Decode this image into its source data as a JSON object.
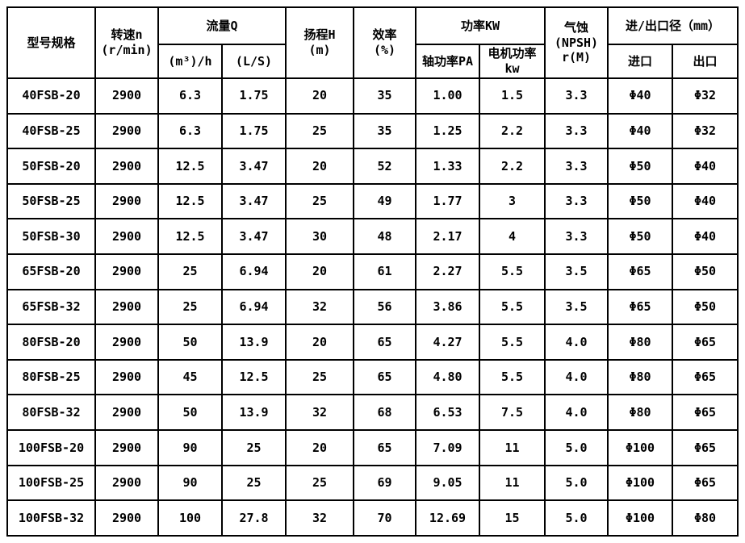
{
  "table": {
    "title_semantic": "FSB pump model specification table",
    "colors": {
      "border": "#000000",
      "background": "#ffffff",
      "text": "#000000"
    },
    "headers": {
      "model": "型号规格",
      "speed": "转速n\n(r/min)",
      "flow_group": "流量Q",
      "flow_m3h": "(m³)/h",
      "flow_ls": "(L/S)",
      "head": "扬程H\n(m)",
      "efficiency": "效率\n(%)",
      "power_group": "功率KW",
      "power_shaft": "轴功率PA",
      "power_motor": "电机功率\nkw",
      "npsh": "气蚀\n(NPSH)\nr(M)",
      "ports_group": "进/出口径（mm）",
      "inlet": "进口",
      "outlet": "出口"
    },
    "rows": [
      [
        "40FSB-20",
        "2900",
        "6.3",
        "1.75",
        "20",
        "35",
        "1.00",
        "1.5",
        "3.3",
        "Φ40",
        "Φ32"
      ],
      [
        "40FSB-25",
        "2900",
        "6.3",
        "1.75",
        "25",
        "35",
        "1.25",
        "2.2",
        "3.3",
        "Φ40",
        "Φ32"
      ],
      [
        "50FSB-20",
        "2900",
        "12.5",
        "3.47",
        "20",
        "52",
        "1.33",
        "2.2",
        "3.3",
        "Φ50",
        "Φ40"
      ],
      [
        "50FSB-25",
        "2900",
        "12.5",
        "3.47",
        "25",
        "49",
        "1.77",
        "3",
        "3.3",
        "Φ50",
        "Φ40"
      ],
      [
        "50FSB-30",
        "2900",
        "12.5",
        "3.47",
        "30",
        "48",
        "2.17",
        "4",
        "3.3",
        "Φ50",
        "Φ40"
      ],
      [
        "65FSB-20",
        "2900",
        "25",
        "6.94",
        "20",
        "61",
        "2.27",
        "5.5",
        "3.5",
        "Φ65",
        "Φ50"
      ],
      [
        "65FSB-32",
        "2900",
        "25",
        "6.94",
        "32",
        "56",
        "3.86",
        "5.5",
        "3.5",
        "Φ65",
        "Φ50"
      ],
      [
        "80FSB-20",
        "2900",
        "50",
        "13.9",
        "20",
        "65",
        "4.27",
        "5.5",
        "4.0",
        "Φ80",
        "Φ65"
      ],
      [
        "80FSB-25",
        "2900",
        "45",
        "12.5",
        "25",
        "65",
        "4.80",
        "5.5",
        "4.0",
        "Φ80",
        "Φ65"
      ],
      [
        "80FSB-32",
        "2900",
        "50",
        "13.9",
        "32",
        "68",
        "6.53",
        "7.5",
        "4.0",
        "Φ80",
        "Φ65"
      ],
      [
        "100FSB-20",
        "2900",
        "90",
        "25",
        "20",
        "65",
        "7.09",
        "11",
        "5.0",
        "Φ100",
        "Φ65"
      ],
      [
        "100FSB-25",
        "2900",
        "90",
        "25",
        "25",
        "69",
        "9.05",
        "11",
        "5.0",
        "Φ100",
        "Φ65"
      ],
      [
        "100FSB-32",
        "2900",
        "100",
        "27.8",
        "32",
        "70",
        "12.69",
        "15",
        "5.0",
        "Φ100",
        "Φ80"
      ]
    ]
  },
  "chart_data": {
    "type": "table",
    "columns": [
      "型号规格",
      "转速n (r/min)",
      "流量Q (m³)/h",
      "流量Q (L/S)",
      "扬程H (m)",
      "效率 (%)",
      "轴功率PA",
      "电机功率kw",
      "气蚀(NPSH) r(M)",
      "进口",
      "出口"
    ],
    "rows": [
      [
        "40FSB-20",
        "2900",
        "6.3",
        "1.75",
        "20",
        "35",
        "1.00",
        "1.5",
        "3.3",
        "Φ40",
        "Φ32"
      ],
      [
        "40FSB-25",
        "2900",
        "6.3",
        "1.75",
        "25",
        "35",
        "1.25",
        "2.2",
        "3.3",
        "Φ40",
        "Φ32"
      ],
      [
        "50FSB-20",
        "2900",
        "12.5",
        "3.47",
        "20",
        "52",
        "1.33",
        "2.2",
        "3.3",
        "Φ50",
        "Φ40"
      ],
      [
        "50FSB-25",
        "2900",
        "12.5",
        "3.47",
        "25",
        "49",
        "1.77",
        "3",
        "3.3",
        "Φ50",
        "Φ40"
      ],
      [
        "50FSB-30",
        "2900",
        "12.5",
        "3.47",
        "30",
        "48",
        "2.17",
        "4",
        "3.3",
        "Φ50",
        "Φ40"
      ],
      [
        "65FSB-20",
        "2900",
        "25",
        "6.94",
        "20",
        "61",
        "2.27",
        "5.5",
        "3.5",
        "Φ65",
        "Φ50"
      ],
      [
        "65FSB-32",
        "2900",
        "25",
        "6.94",
        "32",
        "56",
        "3.86",
        "5.5",
        "3.5",
        "Φ65",
        "Φ50"
      ],
      [
        "80FSB-20",
        "2900",
        "50",
        "13.9",
        "20",
        "65",
        "4.27",
        "5.5",
        "4.0",
        "Φ80",
        "Φ65"
      ],
      [
        "80FSB-25",
        "2900",
        "45",
        "12.5",
        "25",
        "65",
        "4.80",
        "5.5",
        "4.0",
        "Φ80",
        "Φ65"
      ],
      [
        "80FSB-32",
        "2900",
        "50",
        "13.9",
        "32",
        "68",
        "6.53",
        "7.5",
        "4.0",
        "Φ80",
        "Φ65"
      ],
      [
        "100FSB-20",
        "2900",
        "90",
        "25",
        "20",
        "65",
        "7.09",
        "11",
        "5.0",
        "Φ100",
        "Φ65"
      ],
      [
        "100FSB-25",
        "2900",
        "90",
        "25",
        "25",
        "69",
        "9.05",
        "11",
        "5.0",
        "Φ100",
        "Φ65"
      ],
      [
        "100FSB-32",
        "2900",
        "100",
        "27.8",
        "32",
        "70",
        "12.69",
        "15",
        "5.0",
        "Φ100",
        "Φ80"
      ]
    ]
  }
}
